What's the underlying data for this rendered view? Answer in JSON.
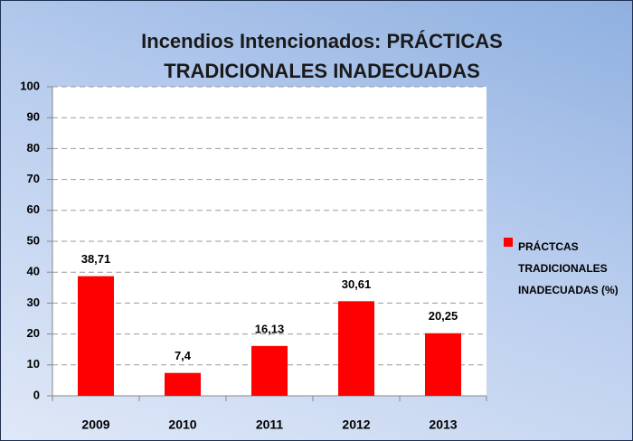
{
  "chart_data": {
    "type": "bar",
    "title": "Incendios Intencionados: PRÁCTICAS TRADICIONALES INADECUADAS",
    "categories": [
      "2009",
      "2010",
      "2011",
      "2012",
      "2013"
    ],
    "series": [
      {
        "name": "PRÁCTCAS TRADICIONALES INADECUADAS (%)",
        "color": "#ff0000",
        "values": [
          38.71,
          7.4,
          16.13,
          30.61,
          20.25
        ],
        "value_labels": [
          "38,71",
          "7,4",
          "16,13",
          "30,61",
          "20,25"
        ]
      }
    ],
    "ylim": [
      0,
      100
    ],
    "yticks": [
      0,
      10,
      20,
      30,
      40,
      50,
      60,
      70,
      80,
      90,
      100
    ],
    "grid": true,
    "legend": "right"
  }
}
